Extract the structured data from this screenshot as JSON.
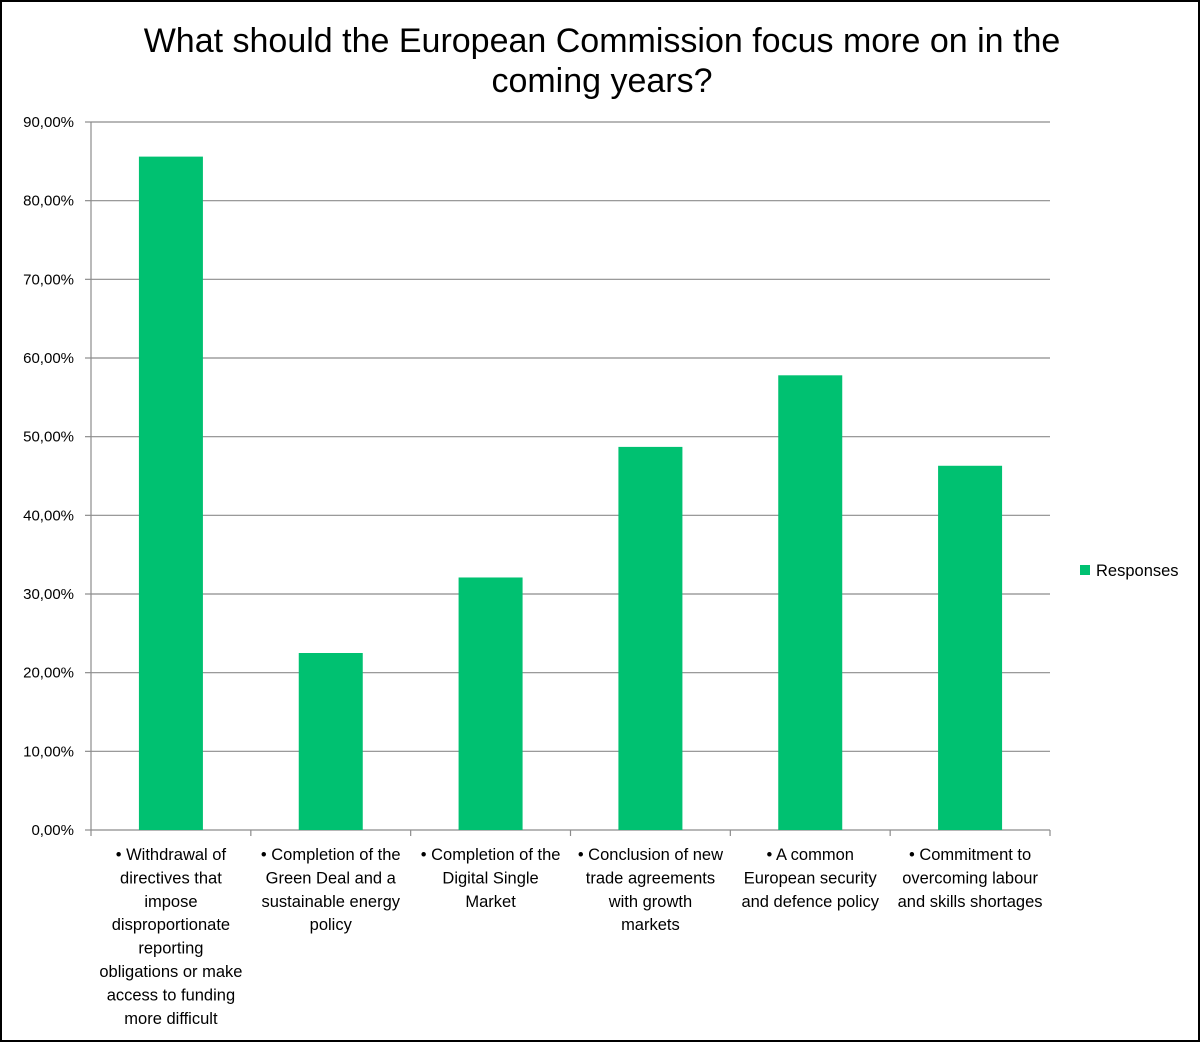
{
  "chart_data": {
    "type": "bar",
    "title_lines": [
      "What should the European Commission focus more on in the",
      "coming years?"
    ],
    "categories": [
      [
        "• Withdrawal of",
        "directives that",
        "impose",
        "disproportionate",
        "reporting",
        "obligations or make",
        "access to funding",
        "more difficult"
      ],
      [
        "• Completion of the",
        "Green Deal and a",
        "sustainable energy",
        "policy"
      ],
      [
        "• Completion of the",
        "Digital Single",
        "Market"
      ],
      [
        "• Conclusion of new",
        "trade agreements",
        "with growth",
        "markets"
      ],
      [
        "• A common",
        "European security",
        "and defence policy"
      ],
      [
        "• Commitment to",
        "overcoming labour",
        "and skills shortages"
      ]
    ],
    "series": [
      {
        "name": "Responses",
        "color": "#00c171",
        "values": [
          85.6,
          22.5,
          32.1,
          48.7,
          57.8,
          46.3
        ]
      }
    ],
    "ylim": [
      0,
      90
    ],
    "y_ticks": [
      "0,00%",
      "10,00%",
      "20,00%",
      "30,00%",
      "40,00%",
      "50,00%",
      "60,00%",
      "70,00%",
      "80,00%",
      "90,00%"
    ],
    "y_tick_values": [
      0,
      10,
      20,
      30,
      40,
      50,
      60,
      70,
      80,
      90
    ],
    "grid": true,
    "legend_position": "right",
    "xlabel": "",
    "ylabel": ""
  }
}
